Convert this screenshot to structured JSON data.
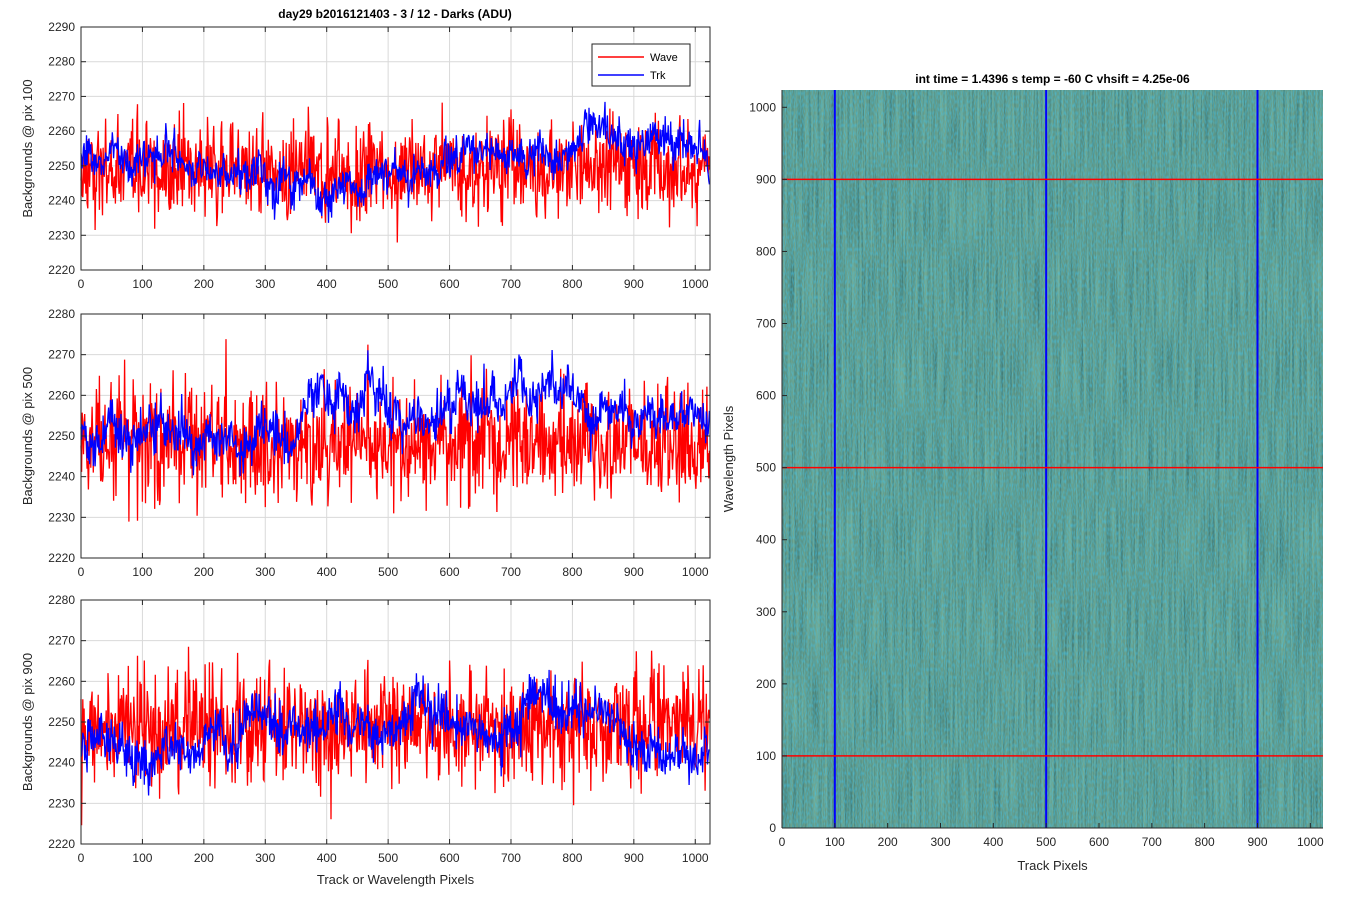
{
  "figure_title": "day29 b2016121403 - 3 / 12 - Darks (ADU)",
  "chart_data": [
    {
      "type": "line",
      "panel": "top-left",
      "ylabel": "Backgrounds @ pix 100",
      "xlabel": "",
      "xlim": [
        0,
        1024
      ],
      "ylim": [
        2220,
        2290
      ],
      "xticks": [
        0,
        100,
        200,
        300,
        400,
        500,
        600,
        700,
        800,
        900,
        1000
      ],
      "yticks": [
        2220,
        2230,
        2240,
        2250,
        2260,
        2270,
        2280,
        2290
      ],
      "grid": true,
      "legend": "top-right",
      "series": [
        {
          "name": "Wave",
          "color": "#ff0000",
          "mean": 2249,
          "std": 7,
          "drift": 0
        },
        {
          "name": "Trk",
          "color": "#0000ff",
          "mean": 2249,
          "std": 5,
          "drift": 8
        }
      ]
    },
    {
      "type": "line",
      "panel": "middle-left",
      "ylabel": "Backgrounds @ pix 500",
      "xlabel": "",
      "xlim": [
        0,
        1024
      ],
      "ylim": [
        2220,
        2280
      ],
      "xticks": [
        0,
        100,
        200,
        300,
        400,
        500,
        600,
        700,
        800,
        900,
        1000
      ],
      "yticks": [
        2220,
        2230,
        2240,
        2250,
        2260,
        2270,
        2280
      ],
      "grid": true,
      "series": [
        {
          "name": "Wave",
          "color": "#ff0000",
          "mean": 2248,
          "std": 7,
          "drift": 0
        },
        {
          "name": "Trk",
          "color": "#0000ff",
          "mean": 2251,
          "std": 5,
          "drift": 9
        }
      ]
    },
    {
      "type": "line",
      "panel": "bottom-left",
      "ylabel": "Backgrounds @ pix 900",
      "xlabel": "Track or Wavelength Pixels",
      "xlim": [
        0,
        1024
      ],
      "ylim": [
        2220,
        2280
      ],
      "xticks": [
        0,
        100,
        200,
        300,
        400,
        500,
        600,
        700,
        800,
        900,
        1000
      ],
      "yticks": [
        2220,
        2230,
        2240,
        2250,
        2260,
        2270,
        2280
      ],
      "grid": true,
      "series": [
        {
          "name": "Wave",
          "color": "#ff0000",
          "mean": 2249,
          "std": 7,
          "drift": 0
        },
        {
          "name": "Trk",
          "color": "#0000ff",
          "mean": 2246,
          "std": 5,
          "drift": 8
        }
      ]
    },
    {
      "type": "heatmap",
      "panel": "right",
      "title": "int time = 1.4396 s    temp = -60 C    vhsift = 4.25e-06",
      "xlabel": "Track Pixels",
      "ylabel": "Wavelength Pixels",
      "xlim": [
        0,
        1024
      ],
      "ylim": [
        0,
        1024
      ],
      "xticks": [
        0,
        100,
        200,
        300,
        400,
        500,
        600,
        700,
        800,
        900,
        1000
      ],
      "yticks": [
        0,
        100,
        200,
        300,
        400,
        500,
        600,
        700,
        800,
        900,
        1000
      ],
      "colormap": "parula",
      "vertical_lines": {
        "x": [
          100,
          500,
          900
        ],
        "color": "#0000ff"
      },
      "horizontal_lines": {
        "y": [
          100,
          500,
          900
        ],
        "color": "#ff0000"
      }
    }
  ]
}
